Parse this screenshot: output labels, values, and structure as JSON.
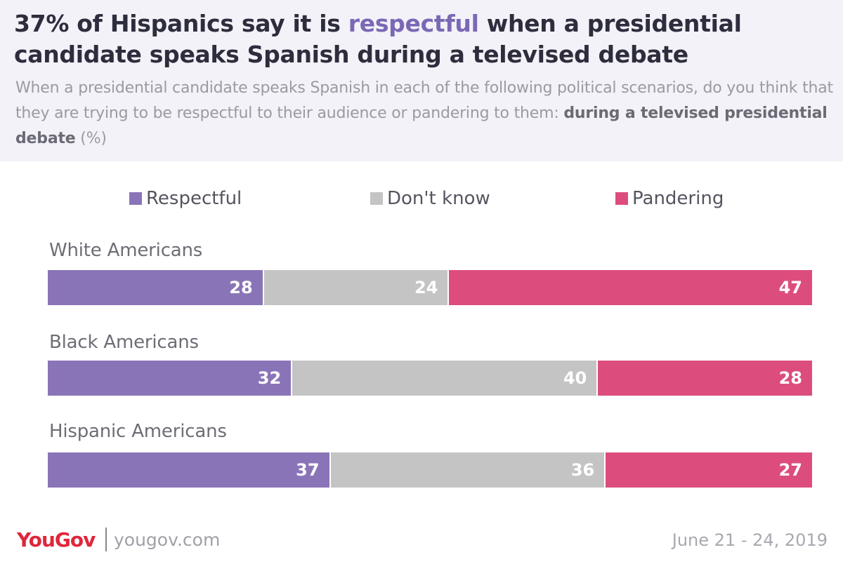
{
  "title": {
    "part1": "37% of Hispanics say it is ",
    "accent": "respectful",
    "part2": " when a presidential candidate speaks Spanish during a televised debate"
  },
  "subtitle": {
    "text": "When a presidential candidate speaks Spanish in each of the following political scenarios, do you think that they are trying to be respectful to their audience or pandering to them: ",
    "strong": "during a televised presidential debate",
    "unit": " (%)"
  },
  "colors": {
    "respectful": "#8a74b8",
    "dont_know": "#c4c4c4",
    "pandering": "#dc4d7e",
    "accent": "#7b68b5",
    "brand": "#e0263b"
  },
  "chart_data": {
    "type": "bar",
    "orientation": "horizontal-stacked",
    "categories": [
      "White Americans",
      "Black Americans",
      "Hispanic Americans"
    ],
    "series": [
      {
        "name": "Respectful",
        "values": [
          28,
          32,
          37
        ]
      },
      {
        "name": "Don't know",
        "values": [
          24,
          40,
          36
        ]
      },
      {
        "name": "Pandering",
        "values": [
          47,
          28,
          27
        ]
      }
    ],
    "legend_position": "top",
    "grid": false
  },
  "footer": {
    "logo": "YouGov",
    "url": "yougov.com",
    "date": "June 21 - 24, 2019"
  }
}
